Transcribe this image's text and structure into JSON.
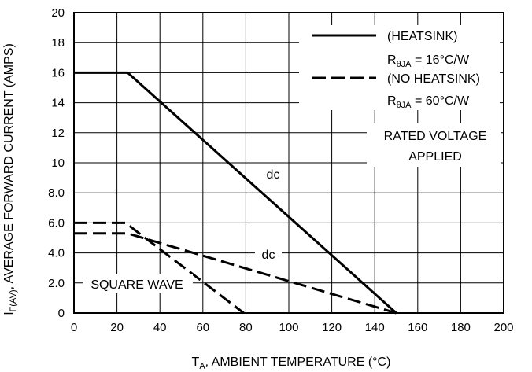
{
  "chart_data": {
    "type": "line",
    "xlabel": {
      "main": "T",
      "sub": "A",
      "rest": ", AMBIENT TEMPERATURE (°C)"
    },
    "ylabel": {
      "main": "I",
      "sub": "F(AV)",
      "rest": ", AVERAGE FORWARD CURRENT (AMPS)"
    },
    "xlim": [
      0,
      200
    ],
    "ylim": [
      0,
      20
    ],
    "x_ticks": [
      "0",
      "20",
      "40",
      "60",
      "80",
      "100",
      "120",
      "140",
      "160",
      "180",
      "200"
    ],
    "y_ticks": [
      "0",
      "2.0",
      "4.0",
      "6.0",
      "8.0",
      "10",
      "12",
      "14",
      "16",
      "18",
      "20"
    ],
    "grid": true,
    "legend_position": "top-right",
    "legend": [
      {
        "label": "(HEATSINK)",
        "style": "solid",
        "param_pre": "R",
        "param_sub": "θJA",
        "param_post": " = 16°C/W"
      },
      {
        "label": "(NO HEATSINK)",
        "style": "dashed",
        "param_pre": "R",
        "param_sub": "θJA",
        "param_post": " = 60°C/W"
      }
    ],
    "series": [
      {
        "style": "solid",
        "points": [
          [
            0,
            16
          ],
          [
            25,
            16
          ],
          [
            150,
            0
          ]
        ]
      },
      {
        "style": "dashed",
        "points": [
          [
            0,
            5.3
          ],
          [
            25,
            5.3
          ],
          [
            150,
            0
          ]
        ]
      },
      {
        "style": "dashed",
        "points": [
          [
            0,
            6.0
          ],
          [
            24,
            6.0
          ],
          [
            79,
            0
          ]
        ]
      }
    ],
    "annotations": {
      "rated_line1": "RATED VOLTAGE",
      "rated_line2": "APPLIED",
      "dc_heatsink": "dc",
      "dc_no_heatsink": "dc",
      "square_wave": "SQUARE WAVE"
    }
  }
}
